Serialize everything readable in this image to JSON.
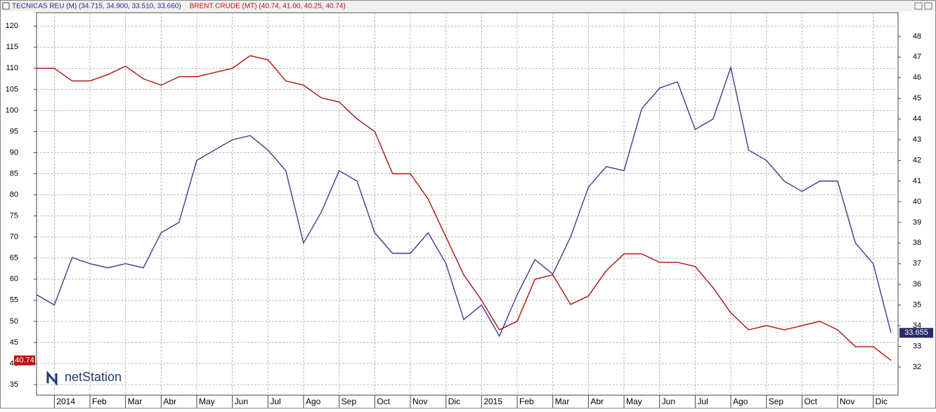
{
  "chart_data": {
    "type": "line",
    "logo": "netStation",
    "categories": [
      null,
      "2014",
      null,
      "Feb",
      null,
      "Mar",
      null,
      "Abr",
      null,
      "May",
      null,
      "Jun",
      null,
      "Jul",
      null,
      "Ago",
      null,
      "Sep",
      null,
      "Oct",
      null,
      "Nov",
      null,
      "Dic",
      null,
      "2015",
      null,
      "Feb",
      null,
      "Mar",
      null,
      "Abr",
      null,
      "May",
      null,
      "Jun",
      null,
      "Jul",
      null,
      "Ago",
      null,
      "Sep",
      null,
      "Oct",
      null,
      "Nov",
      null,
      "Dic",
      null
    ],
    "series": [
      {
        "name": "TECNICAS REU (M) (34.715, 34.900, 33.510, 33.660)",
        "color": "#3c3c8c",
        "axis": "y2",
        "last_value_label": "33.655",
        "values": [
          35.5,
          35,
          37.3,
          37,
          36.8,
          37,
          36.8,
          38.5,
          39,
          42,
          42.5,
          43,
          43.2,
          42.5,
          41.5,
          38,
          39.5,
          41.5,
          41,
          38.5,
          37.5,
          37.5,
          38.5,
          37,
          34.3,
          35,
          33.5,
          35.5,
          37.2,
          36.5,
          38.3,
          40.7,
          41.7,
          41.5,
          44.5,
          45.5,
          45.8,
          43.5,
          44,
          46.5,
          42.5,
          42,
          41,
          40.5,
          41,
          41,
          38,
          37,
          33.655
        ]
      },
      {
        "name": "BRENT CRUDE (MT) (40.74, 41.00, 40.25, 40.74)",
        "color": "#b01010",
        "last_value_label": "40.74",
        "values": [
          110,
          110,
          107,
          107,
          108.5,
          110.5,
          107.5,
          106,
          108,
          108,
          109,
          110,
          113,
          112,
          107,
          106,
          103,
          102,
          98,
          95,
          85,
          85,
          79,
          70,
          61,
          55,
          48,
          50,
          60,
          61,
          54,
          56,
          62,
          66,
          66,
          64,
          64,
          63,
          58,
          52,
          48,
          49,
          48,
          49,
          50,
          48,
          44,
          44,
          40.74
        ]
      }
    ],
    "ylim": [
      32.5,
      123.2
    ],
    "yticks": [
      35,
      40,
      45,
      50,
      55,
      60,
      65,
      70,
      75,
      80,
      85,
      90,
      95,
      100,
      105,
      110,
      115,
      120
    ],
    "y2lim": [
      30.64,
      49.15
    ],
    "y2ticks": [
      32,
      33,
      34,
      35,
      36,
      37,
      38,
      39,
      40,
      41,
      42,
      43,
      44,
      45,
      46,
      47,
      48
    ],
    "grid": true
  }
}
